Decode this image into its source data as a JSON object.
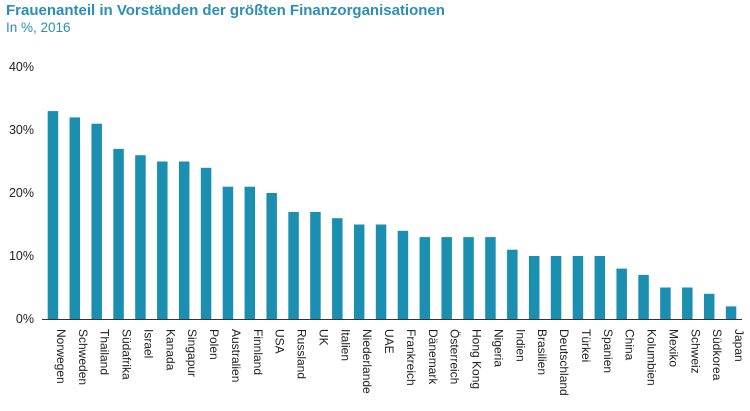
{
  "chart_data": {
    "type": "bar",
    "title": "Frauenanteil in Vorständen der größten Finanzorganisationen",
    "subtitle": "In %, 2016",
    "xlabel": "",
    "ylabel": "",
    "ylim": [
      0,
      40
    ],
    "yticks": [
      0,
      10,
      20,
      30,
      40
    ],
    "ytick_labels": [
      "0%",
      "10%",
      "20%",
      "30%",
      "40%"
    ],
    "grid": false,
    "bar_color": "#1a8fb0",
    "categories": [
      "Norwegen",
      "Schweden",
      "Thailand",
      "Südafrika",
      "Israel",
      "Kanada",
      "Singapur",
      "Polen",
      "Australien",
      "Finnland",
      "USA",
      "Russland",
      "UK",
      "Italien",
      "Niederlande",
      "UAE",
      "Frankreich",
      "Dänemark",
      "Österreich",
      "Hong Kong",
      "Nigeria",
      "Indien",
      "Brasilien",
      "Deutschland",
      "Türkei",
      "Spanien",
      "China",
      "Kolumbien",
      "Mexiko",
      "Schweiz",
      "Südkorea",
      "Japan"
    ],
    "values": [
      33,
      32,
      31,
      27,
      26,
      25,
      25,
      24,
      21,
      21,
      20,
      17,
      17,
      16,
      15,
      15,
      14,
      13,
      13,
      13,
      13,
      11,
      10,
      10,
      10,
      10,
      8,
      7,
      5,
      5,
      4,
      2
    ]
  }
}
